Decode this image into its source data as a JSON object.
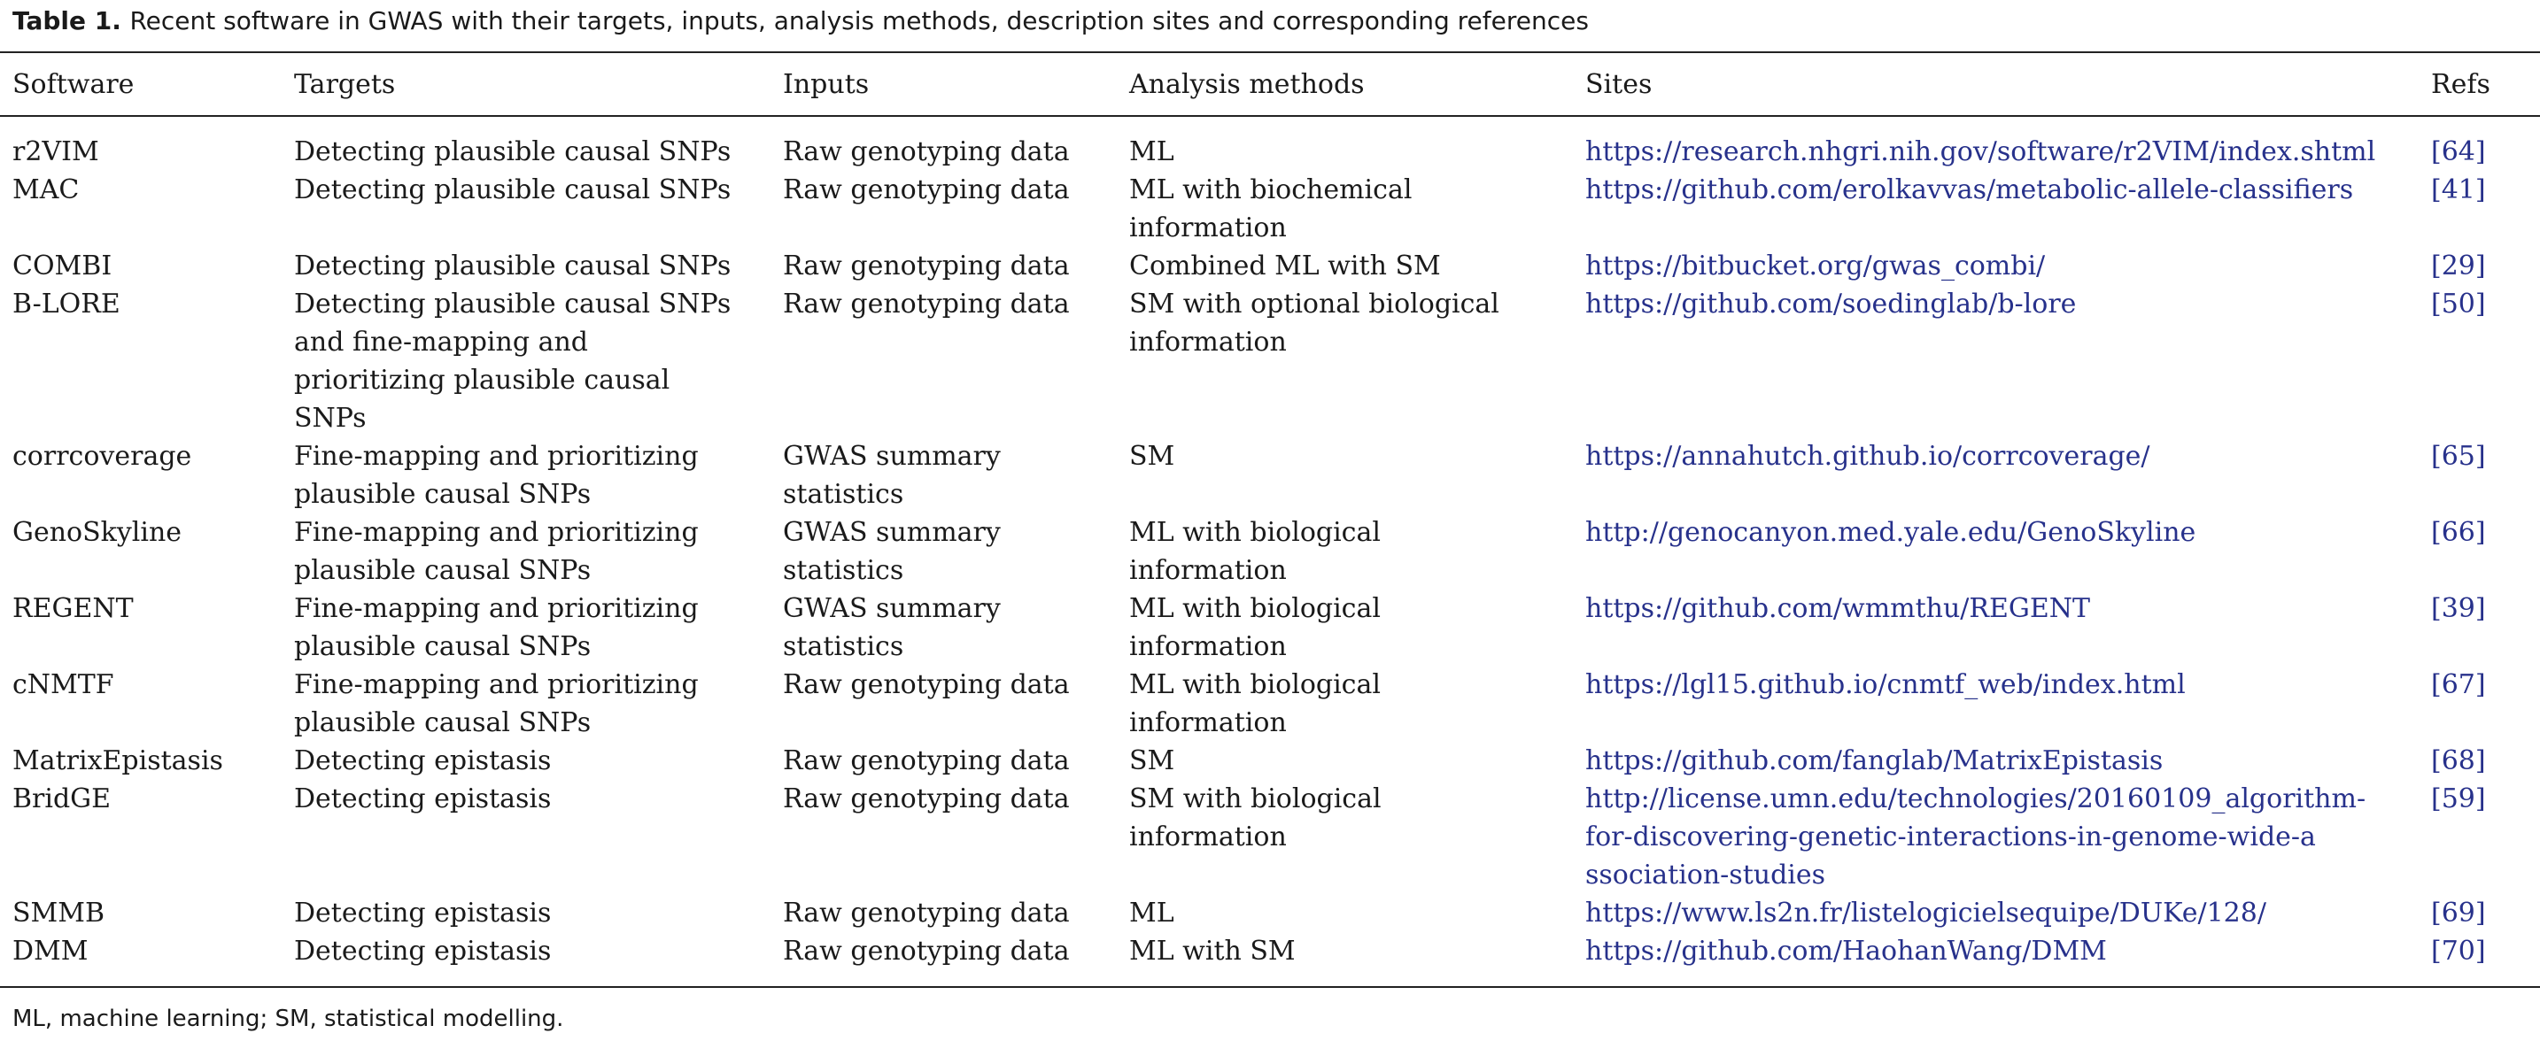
{
  "caption": {
    "label": "Table 1.",
    "text": "Recent software in GWAS with their targets, inputs, analysis methods, description sites and corresponding references"
  },
  "headers": {
    "software": "Software",
    "targets": "Targets",
    "inputs": "Inputs",
    "methods": "Analysis methods",
    "sites": "Sites",
    "refs": "Refs"
  },
  "rows": [
    {
      "software": "r2VIM",
      "targets": [
        "Detecting plausible causal SNPs"
      ],
      "inputs": [
        "Raw genotyping data"
      ],
      "methods": [
        "ML"
      ],
      "site": [
        "https://research.nhgri.nih.gov/software/r2VIM/index.shtml"
      ],
      "ref": "[64]"
    },
    {
      "software": "MAC",
      "targets": [
        "Detecting plausible causal SNPs"
      ],
      "inputs": [
        "Raw genotyping data"
      ],
      "methods": [
        "ML with biochemical",
        "information"
      ],
      "site": [
        "https://github.com/erolkavvas/metabolic-allele-classifiers"
      ],
      "ref": "[41]"
    },
    {
      "software": "COMBI",
      "targets": [
        "Detecting plausible causal SNPs"
      ],
      "inputs": [
        "Raw genotyping data"
      ],
      "methods": [
        "Combined ML with SM"
      ],
      "site": [
        "https://bitbucket.org/gwas_combi/"
      ],
      "ref": "[29]"
    },
    {
      "software": "B-LORE",
      "targets": [
        "Detecting plausible causal SNPs",
        "and fine-mapping and",
        "prioritizing plausible causal",
        "SNPs"
      ],
      "inputs": [
        "Raw genotyping data"
      ],
      "methods": [
        "SM with optional biological",
        "information"
      ],
      "site": [
        "https://github.com/soedinglab/b-lore"
      ],
      "ref": "[50]"
    },
    {
      "software": "corrcoverage",
      "targets": [
        "Fine-mapping and prioritizing",
        "plausible causal SNPs"
      ],
      "inputs": [
        "GWAS summary",
        "statistics"
      ],
      "methods": [
        "SM"
      ],
      "site": [
        "https://annahutch.github.io/corrcoverage/"
      ],
      "ref": "[65]"
    },
    {
      "software": "GenoSkyline",
      "targets": [
        "Fine-mapping and prioritizing",
        "plausible causal SNPs"
      ],
      "inputs": [
        "GWAS summary",
        "statistics"
      ],
      "methods": [
        "ML with biological",
        "information"
      ],
      "site": [
        "http://genocanyon.med.yale.edu/GenoSkyline"
      ],
      "ref": "[66]"
    },
    {
      "software": "REGENT",
      "targets": [
        "Fine-mapping and prioritizing",
        "plausible causal SNPs"
      ],
      "inputs": [
        "GWAS summary",
        "statistics"
      ],
      "methods": [
        "ML with biological",
        "information"
      ],
      "site": [
        "https://github.com/wmmthu/REGENT"
      ],
      "ref": "[39]"
    },
    {
      "software": "cNMTF",
      "targets": [
        "Fine-mapping and prioritizing",
        "plausible causal SNPs"
      ],
      "inputs": [
        "Raw genotyping data"
      ],
      "methods": [
        "ML with biological",
        "information"
      ],
      "site": [
        "https://lgl15.github.io/cnmtf_web/index.html"
      ],
      "ref": "[67]"
    },
    {
      "software": "MatrixEpistasis",
      "targets": [
        "Detecting epistasis"
      ],
      "inputs": [
        "Raw genotyping data"
      ],
      "methods": [
        "SM"
      ],
      "site": [
        "https://github.com/fanglab/MatrixEpistasis"
      ],
      "ref": "[68]"
    },
    {
      "software": "BridGE",
      "targets": [
        "Detecting epistasis"
      ],
      "inputs": [
        "Raw genotyping data"
      ],
      "methods": [
        "SM with biological",
        "information"
      ],
      "site": [
        "http://license.umn.edu/technologies/20160109_algorithm-",
        "for-discovering-genetic-interactions-in-genome-wide-a",
        "ssociation-studies"
      ],
      "ref": "[59]"
    },
    {
      "software": "SMMB",
      "targets": [
        "Detecting epistasis"
      ],
      "inputs": [
        "Raw genotyping data"
      ],
      "methods": [
        "ML"
      ],
      "site": [
        "https://www.ls2n.fr/listelogicielsequipe/DUKe/128/"
      ],
      "ref": "[69]"
    },
    {
      "software": "DMM",
      "targets": [
        "Detecting epistasis"
      ],
      "inputs": [
        "Raw genotyping data"
      ],
      "methods": [
        "ML with SM"
      ],
      "site": [
        "https://github.com/HaohanWang/DMM"
      ],
      "ref": "[70]"
    }
  ],
  "footnote": "ML, machine learning; SM, statistical modelling."
}
